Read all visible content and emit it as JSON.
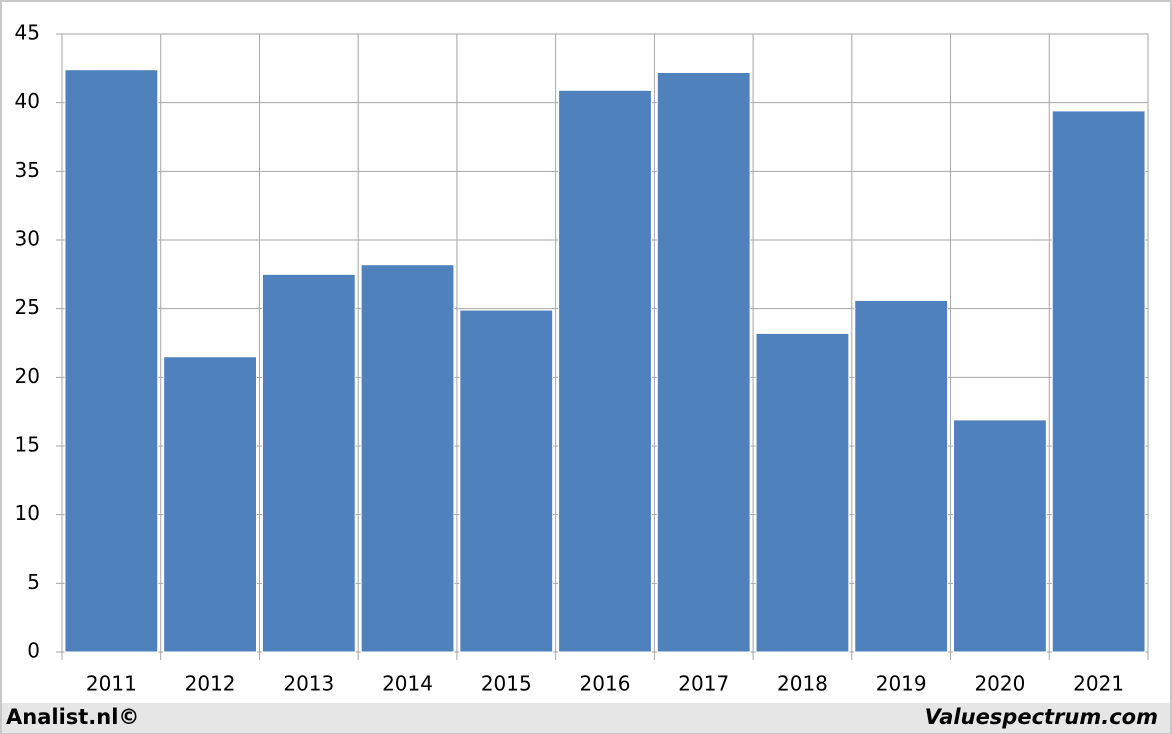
{
  "chart_data": {
    "type": "bar",
    "categories": [
      "2011",
      "2012",
      "2013",
      "2014",
      "2015",
      "2016",
      "2017",
      "2018",
      "2019",
      "2020",
      "2021"
    ],
    "values": [
      42.4,
      21.5,
      27.5,
      28.2,
      24.9,
      40.9,
      42.2,
      23.2,
      25.6,
      16.9,
      39.4
    ],
    "color": "#4f81bd",
    "ylim": [
      0,
      45
    ],
    "yticks": [
      0,
      5,
      10,
      15,
      20,
      25,
      30,
      35,
      40,
      45
    ],
    "grid": true,
    "credit_left": "Analist.nl©",
    "credit_right": "Valuespectrum.com"
  }
}
